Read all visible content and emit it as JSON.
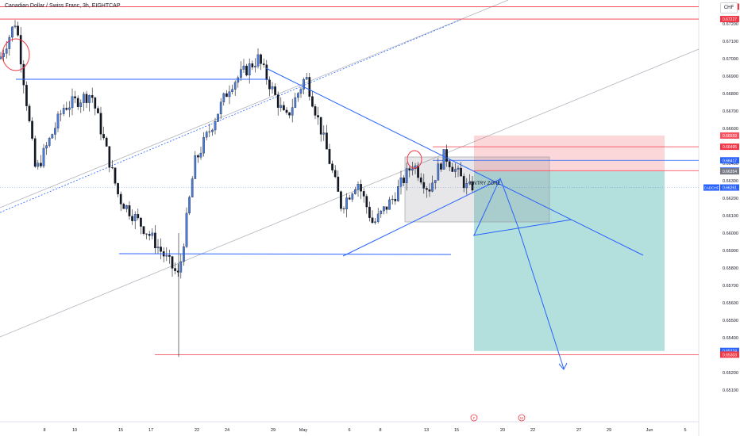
{
  "header": {
    "title": "Canadian Dollar / Swiss Franc, 3h, EIGHTCAP",
    "currency": "CHF"
  },
  "chart_data": {
    "type": "candlestick",
    "symbol": "CADCHF",
    "ylim": [
      0.6505,
      0.6735
    ],
    "y_ticks": [
      "0.67200",
      "0.67100",
      "0.67000",
      "0.66900",
      "0.66800",
      "0.66700",
      "0.66600",
      "0.66500",
      "0.66400",
      "0.66300",
      "0.66200",
      "0.66100",
      "0.66000",
      "0.65900",
      "0.65800",
      "0.65700",
      "0.65600",
      "0.65500",
      "0.65400",
      "0.65300",
      "0.65200",
      "0.65100"
    ],
    "x_ticks": [
      "8",
      "10",
      "15",
      "17",
      "22",
      "24",
      "29",
      "May",
      "6",
      "8",
      "13",
      "15",
      "20",
      "22",
      "27",
      "29",
      "Jun",
      "5"
    ],
    "event_markers": [
      "F",
      "M"
    ],
    "price_labels": [
      {
        "text": "0.67298",
        "value": 0.67298,
        "color": "#f23645"
      },
      {
        "text": "0.67227",
        "value": 0.67227,
        "color": "#f23645"
      },
      {
        "text": "0.66559",
        "value": 0.66559,
        "color": "#f7525f"
      },
      {
        "text": "0.66495",
        "value": 0.66495,
        "color": "#f23645"
      },
      {
        "text": "0.66417",
        "value": 0.66417,
        "color": "#2962ff"
      },
      {
        "text": "0.66358",
        "value": 0.66358,
        "color": "#2962ff"
      },
      {
        "text": "0.66354",
        "value": 0.66354,
        "color": "#787b86"
      },
      {
        "text": "0.66261",
        "value": 0.66261,
        "color": "#2962ff"
      },
      {
        "text": "0.65324",
        "value": 0.65324,
        "color": "#2962ff"
      },
      {
        "text": "0.65303",
        "value": 0.65303,
        "color": "#f23645"
      }
    ],
    "symbol_tag": {
      "name": "CADCHF",
      "price": "0.66261",
      "countdown": "52:46"
    },
    "annotations": {
      "entry_zone": "ENTRY ZONE"
    },
    "trade": {
      "entry": 0.66354,
      "stop": 0.66559,
      "target": 0.65324
    },
    "colors": {
      "up": "#ffffff",
      "down": "#131722",
      "trend": "#2962ff",
      "level": "#f23645",
      "profit": "#26a69a",
      "loss": "#f23645",
      "channel": "#b2b5be"
    }
  }
}
